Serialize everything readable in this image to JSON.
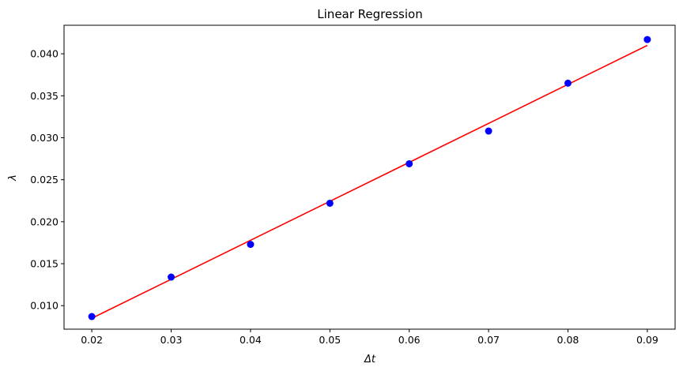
{
  "chart_data": {
    "type": "scatter",
    "title": "Linear Regression",
    "xlabel": "Δt",
    "ylabel": "λ",
    "xlim": [
      0.0165,
      0.0935
    ],
    "ylim": [
      0.0072,
      0.0434
    ],
    "x_ticks": [
      0.02,
      0.03,
      0.04,
      0.05,
      0.06,
      0.07,
      0.08,
      0.09
    ],
    "x_tick_labels": [
      "0.02",
      "0.03",
      "0.04",
      "0.05",
      "0.06",
      "0.07",
      "0.08",
      "0.09"
    ],
    "y_ticks": [
      0.01,
      0.015,
      0.02,
      0.025,
      0.03,
      0.035,
      0.04
    ],
    "y_tick_labels": [
      "0.010",
      "0.015",
      "0.020",
      "0.025",
      "0.030",
      "0.035",
      "0.040"
    ],
    "grid": false,
    "series": [
      {
        "kind": "scatter",
        "color": "#0000ff",
        "x": [
          0.02,
          0.03,
          0.04,
          0.05,
          0.06,
          0.07,
          0.08,
          0.09
        ],
        "y": [
          0.0087,
          0.0134,
          0.0173,
          0.0222,
          0.0269,
          0.0308,
          0.0365,
          0.0417
        ]
      },
      {
        "kind": "line",
        "color": "#ff0000",
        "x": [
          0.02,
          0.09
        ],
        "y": [
          0.0085,
          0.041
        ]
      }
    ]
  }
}
